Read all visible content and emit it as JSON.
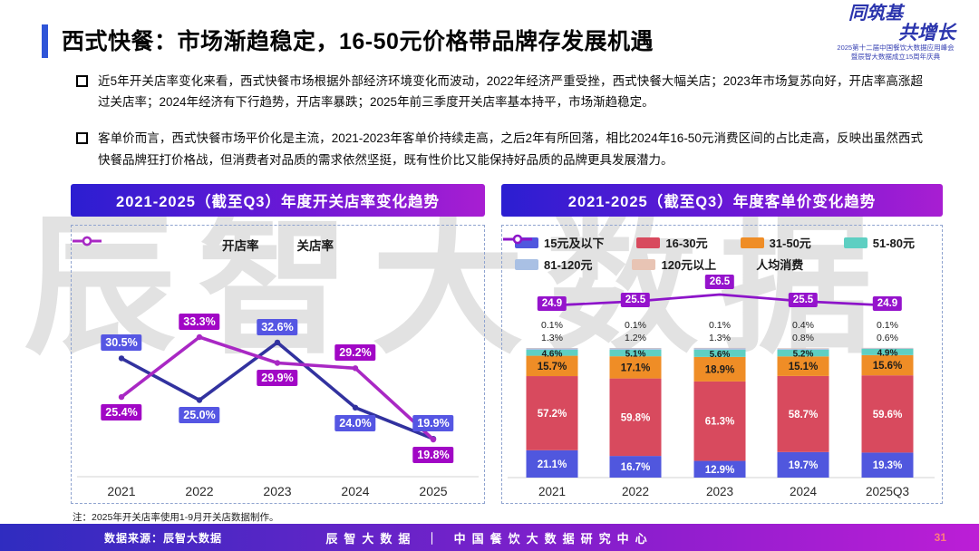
{
  "slide": {
    "title": "西式快餐：市场渐趋稳定，16-50元价格带品牌存发展机遇",
    "accent_color": "#2f55d8",
    "watermark": "辰智大数据"
  },
  "logo": {
    "line1": "同筑基",
    "line2": "共增长",
    "sub1": "2025第十二届中国餐饮大数据应用峰会",
    "sub2": "暨辰智大数据成立15周年庆典",
    "color": "#2b35ad"
  },
  "bullets": [
    {
      "text": "近5年开关店率变化来看，西式快餐市场根据外部经济环境变化而波动，2022年经济严重受挫，西式快餐大幅关店；2023年市场复苏向好，开店率高涨超过关店率；2024年经济有下行趋势，开店率暴跌；2025年前三季度开关店率基本持平，市场渐趋稳定。"
    },
    {
      "text": "客单价而言，西式快餐市场平价化是主流，2021-2023年客单价持续走高，之后2年有所回落，相比2024年16-50元消费区间的占比走高，反映出虽然西式快餐品牌狂打价格战，但消费者对品质的需求依然坚挺，既有性价比又能保持好品质的品牌更具发展潜力。"
    }
  ],
  "note": "注：2025年开关店率使用1-9月开关店数据制作。",
  "footer": {
    "source": "数据来源：辰智大数据",
    "center": "辰智大数据 ｜ 中国餐饮大数据研究中心",
    "page": "31"
  },
  "chart_data": [
    {
      "type": "line",
      "title": "2021-2025（截至Q3）年度开关店率变化趋势",
      "categories": [
        "2021",
        "2022",
        "2023",
        "2024",
        "2025"
      ],
      "series": [
        {
          "name": "开店率",
          "color": "#32329f",
          "label_bg": "#5556e3",
          "values": [
            30.5,
            25.0,
            32.6,
            24.0,
            19.9
          ]
        },
        {
          "name": "关店率",
          "color": "#a928c4",
          "label_bg": "#a107c5",
          "values": [
            25.4,
            33.3,
            29.9,
            29.2,
            19.8
          ]
        }
      ],
      "unit": "%",
      "ylim": [
        18,
        35
      ],
      "grid": false,
      "legend_position": "top"
    },
    {
      "type": "bar",
      "title": "2021-2025（截至Q3）年度客单价变化趋势",
      "categories": [
        "2021",
        "2022",
        "2023",
        "2024",
        "2025Q3"
      ],
      "stacked": true,
      "unit": "%",
      "series": [
        {
          "name": "15元及以下",
          "color": "#5057de",
          "values": [
            21.1,
            16.7,
            12.9,
            19.7,
            19.3
          ]
        },
        {
          "name": "16-30元",
          "color": "#d84a5e",
          "values": [
            57.2,
            59.8,
            61.3,
            58.7,
            59.6
          ]
        },
        {
          "name": "31-50元",
          "color": "#ef8d26",
          "values": [
            15.7,
            17.1,
            18.9,
            15.1,
            15.6
          ]
        },
        {
          "name": "51-80元",
          "color": "#5ecfc2",
          "values": [
            4.6,
            5.1,
            5.6,
            5.2,
            4.9
          ]
        },
        {
          "name": "81-120元",
          "color": "#a9c0e4",
          "values": [
            1.3,
            1.2,
            1.3,
            0.8,
            0.6
          ]
        },
        {
          "name": "120元以上",
          "color": "#e8c4b4",
          "values": [
            0.1,
            0.1,
            0.1,
            0.4,
            0.1
          ]
        }
      ],
      "line": {
        "name": "人均消费",
        "color": "#8d15c9",
        "label_bg": "#9513cc",
        "values": [
          24.9,
          25.5,
          26.5,
          25.5,
          24.9
        ]
      },
      "legend_position": "top"
    }
  ]
}
